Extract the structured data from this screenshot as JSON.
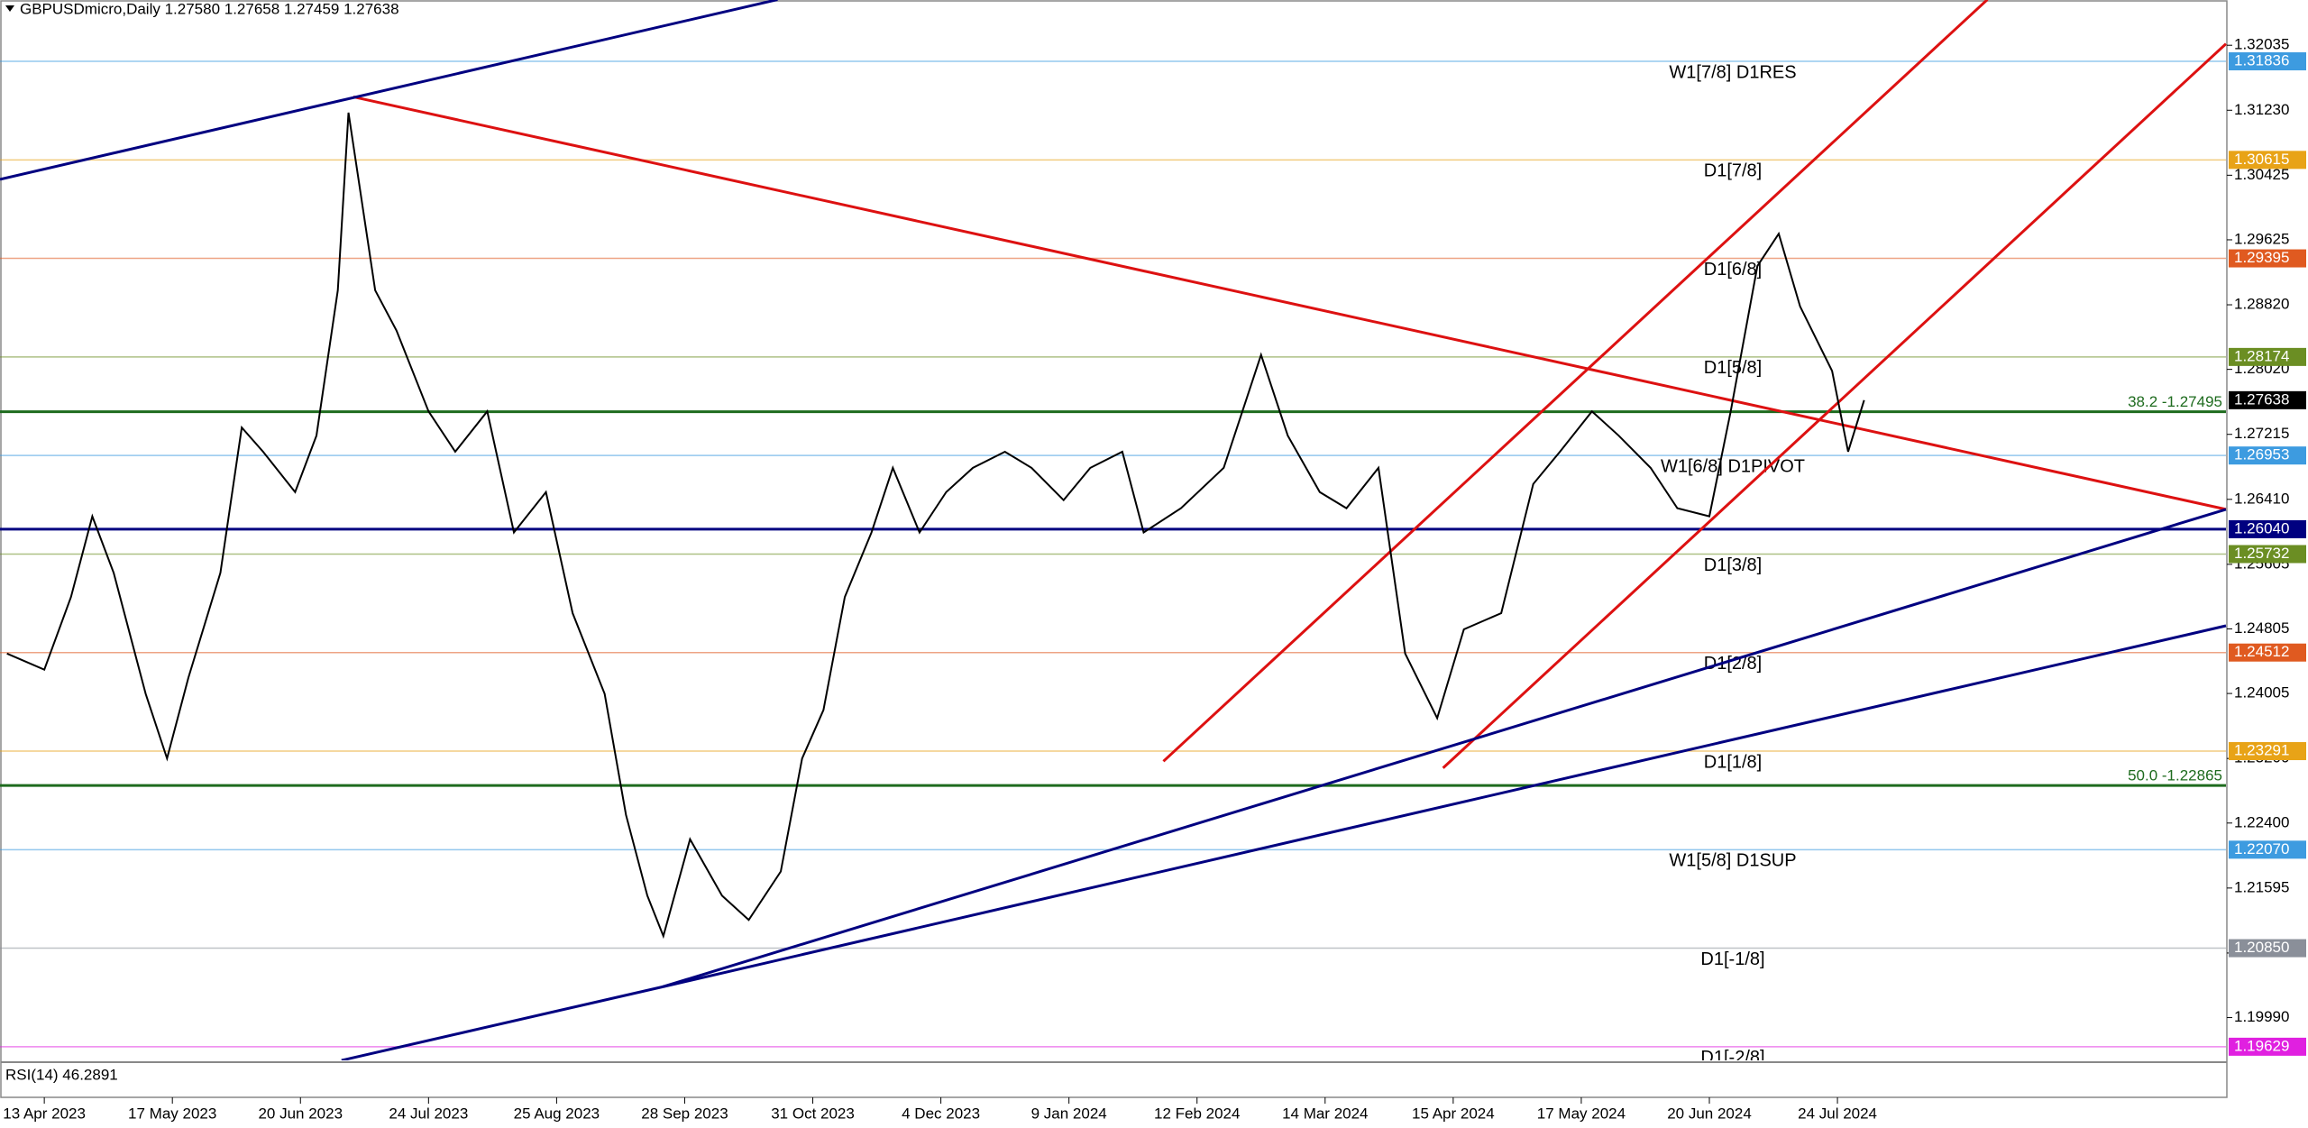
{
  "chart_data": {
    "type": "line",
    "header": "GBPUSDmicro,Daily 1.27580 1.27658 1.27459 1.27638",
    "indicator_label": "RSI(14) 46.2891",
    "color": "#000000",
    "x": [
      0,
      7,
      12,
      16,
      20,
      26,
      30,
      34,
      40,
      44,
      48,
      54,
      58,
      62,
      64,
      69,
      73,
      79,
      84,
      90,
      95,
      101,
      106,
      112,
      116,
      120,
      123,
      128,
      134,
      139,
      145,
      149,
      153,
      157,
      162,
      166,
      171,
      176,
      181,
      187,
      192,
      198,
      203,
      209,
      213,
      220,
      228,
      235,
      240,
      246,
      251,
      257,
      262,
      268,
      273,
      280,
      286,
      291,
      297,
      302,
      308,
      313,
      319,
      323,
      328,
      332,
      336,
      342,
      345,
      348
    ],
    "values": [
      1.245,
      1.243,
      1.252,
      1.262,
      1.255,
      1.24,
      1.232,
      1.242,
      1.255,
      1.273,
      1.27,
      1.265,
      1.272,
      1.29,
      1.312,
      1.29,
      1.285,
      1.275,
      1.27,
      1.275,
      1.26,
      1.265,
      1.25,
      1.24,
      1.225,
      1.215,
      1.21,
      1.222,
      1.215,
      1.212,
      1.218,
      1.232,
      1.238,
      1.252,
      1.26,
      1.268,
      1.26,
      1.265,
      1.268,
      1.27,
      1.268,
      1.264,
      1.268,
      1.27,
      1.26,
      1.263,
      1.268,
      1.282,
      1.272,
      1.265,
      1.263,
      1.268,
      1.245,
      1.237,
      1.248,
      1.25,
      1.266,
      1.27,
      1.275,
      1.272,
      1.268,
      1.263,
      1.262,
      1.275,
      1.293,
      1.297,
      1.288,
      1.28,
      1.27,
      1.27638
    ],
    "xlim": [
      -1.3,
      415.8
    ],
    "xticks": [
      {
        "value": 7,
        "label": "13 Apr 2023"
      },
      {
        "value": 31,
        "label": "17 May 2023"
      },
      {
        "value": 55,
        "label": "20 Jun 2023"
      },
      {
        "value": 79,
        "label": "24 Jul 2023"
      },
      {
        "value": 103,
        "label": "25 Aug 2023"
      },
      {
        "value": 127,
        "label": "28 Sep 2023"
      },
      {
        "value": 151,
        "label": "31 Oct 2023"
      },
      {
        "value": 175,
        "label": "4 Dec 2023"
      },
      {
        "value": 199,
        "label": "9 Jan 2024"
      },
      {
        "value": 223,
        "label": "12 Feb 2024"
      },
      {
        "value": 247,
        "label": "14 Mar 2024"
      },
      {
        "value": 271,
        "label": "15 Apr 2024"
      },
      {
        "value": 295,
        "label": "17 May 2024"
      },
      {
        "value": 319,
        "label": "20 Jun 2024"
      },
      {
        "value": 343,
        "label": "24 Jul 2024"
      }
    ],
    "ylim": [
      1.1946,
      1.3235
    ],
    "yticks": [
      1.32035,
      {
        "value": 1.3123,
        "label": "1.31230"
      },
      1.30425,
      1.29625,
      {
        "value": 1.2882,
        "label": "1.28820"
      },
      {
        "value": 1.2802,
        "label": "1.28020"
      },
      1.27215,
      {
        "value": 1.2641,
        "label": "1.26410"
      },
      1.25605,
      1.24805,
      1.24005,
      {
        "value": 1.232,
        "label": "1.23200"
      },
      {
        "value": 1.224,
        "label": "1.22400"
      },
      1.21595,
      {
        "value": 1.2079,
        "label": "1.20790"
      },
      {
        "value": 1.1999,
        "label": "1.19990"
      }
    ],
    "levels": [
      {
        "label": "W1[7/8] D1RES",
        "value": 1.31836,
        "color": "#3d9be0"
      },
      {
        "label": "D1[7/8]",
        "value": 1.30615,
        "color": "#e8a317"
      },
      {
        "label": "D1[6/8]",
        "value": 1.29395,
        "color": "#e05a20"
      },
      {
        "label": "D1[5/8]",
        "value": 1.28174,
        "color": "#6b8e23"
      },
      {
        "label": "W1[6/8] D1PIVOT",
        "value": 1.26953,
        "color": "#3d9be0"
      },
      {
        "value": 1.2604,
        "value_label": "1.26040",
        "color": "#000080"
      },
      {
        "label": "D1[3/8]",
        "value": 1.25732,
        "color": "#6b8e23"
      },
      {
        "label": "D1[2/8]",
        "value": 1.24512,
        "color": "#e05a20"
      },
      {
        "label": "D1[1/8]",
        "value": 1.23291,
        "color": "#e8a317"
      },
      {
        "label": "W1[5/8] D1SUP",
        "value": 1.2207,
        "value_label": "1.22070",
        "color": "#3d9be0"
      },
      {
        "label": "D1[-1/8]",
        "value": 1.2085,
        "value_label": "1.20850",
        "color": "#8a8f99"
      },
      {
        "label": "D1[-2/8]",
        "value": 1.19629,
        "color": "#e020e0"
      }
    ],
    "fibo_levels": [
      {
        "label": "38.2 -1.27495",
        "value": 1.27495,
        "color": "#1e6b1e"
      },
      {
        "label": "50.0 -1.22865",
        "value": 1.22865,
        "color": "#1e6b1e"
      }
    ],
    "last_price": 1.27638,
    "trendlines": [
      {
        "color": "#dd1111",
        "x": [
          64.9,
          415.8
        ],
        "y": [
          1.31396,
          1.26286
        ]
      },
      {
        "color": "#dd1111",
        "x": [
          216.7,
          371.1
        ],
        "y": [
          1.23165,
          1.32601
        ]
      },
      {
        "color": "#dd1111",
        "x": [
          269.1,
          415.8
        ],
        "y": [
          1.23082,
          1.32053
        ]
      },
      {
        "color": "#000080",
        "x": [
          -1.3,
          144.4
        ],
        "y": [
          1.30374,
          1.32601
        ]
      },
      {
        "color": "#000080",
        "x": [
          62.7,
          122.9
        ],
        "y": [
          1.1946,
          1.20372
        ]
      },
      {
        "color": "#000080",
        "x": [
          122.9,
          415.8
        ],
        "y": [
          1.20372,
          1.26286
        ]
      },
      {
        "color": "#000080",
        "x": [
          122.9,
          415.8
        ],
        "y": [
          1.20372,
          1.24844
        ]
      }
    ]
  }
}
